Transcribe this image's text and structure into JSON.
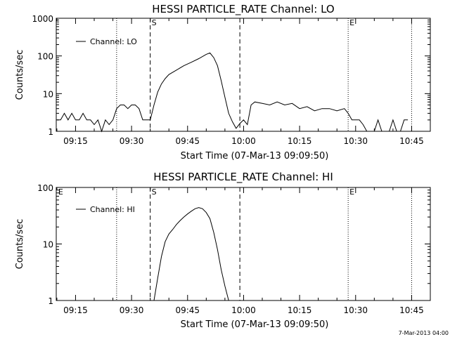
{
  "chart_data": [
    {
      "type": "line",
      "title": "HESSI PARTICLE_RATE Channel: LO",
      "xlabel": "Start Time (07-Mar-13 09:09:50)",
      "ylabel": "Counts/sec",
      "yscale": "log",
      "ylim": [
        1,
        1000
      ],
      "xlim": [
        "09:09:50",
        "10:50:00"
      ],
      "x_ticks": [
        "09:15",
        "09:30",
        "09:45",
        "10:00",
        "10:15",
        "10:30",
        "10:45"
      ],
      "y_ticks": [
        "1",
        "10",
        "100",
        "1000"
      ],
      "legend": {
        "position": "top-left",
        "entries": [
          "Channel: LO"
        ]
      },
      "markers": [
        {
          "label": "",
          "time": "09:26",
          "style": "dotted"
        },
        {
          "label": "S",
          "time": "09:35",
          "style": "dashed"
        },
        {
          "label": "",
          "time": "09:59",
          "style": "dashed"
        },
        {
          "label": "E",
          "time": "10:28",
          "style": "dotted"
        },
        {
          "label": "",
          "time": "10:45",
          "style": "dotted"
        }
      ],
      "series": [
        {
          "name": "Channel: LO",
          "x": [
            "09:10",
            "09:11",
            "09:12",
            "09:13",
            "09:14",
            "09:15",
            "09:16",
            "09:17",
            "09:18",
            "09:19",
            "09:20",
            "09:21",
            "09:22",
            "09:23",
            "09:24",
            "09:25",
            "09:26",
            "09:27",
            "09:28",
            "09:29",
            "09:30",
            "09:31",
            "09:32",
            "09:33",
            "09:34",
            "09:35",
            "09:36",
            "09:37",
            "09:38",
            "09:39",
            "09:40",
            "09:42",
            "09:44",
            "09:46",
            "09:48",
            "09:50",
            "09:51",
            "09:52",
            "09:53",
            "09:54",
            "09:55",
            "09:56",
            "09:57",
            "09:58",
            "09:59",
            "10:00",
            "10:01",
            "10:02",
            "10:03",
            "10:05",
            "10:07",
            "10:09",
            "10:11",
            "10:13",
            "10:15",
            "10:17",
            "10:19",
            "10:21",
            "10:23",
            "10:25",
            "10:27",
            "10:28",
            "10:29",
            "10:30",
            "10:31",
            "10:32",
            "10:33",
            "10:34",
            "10:35",
            "10:36",
            "10:37",
            "10:38",
            "10:39",
            "10:40",
            "10:41",
            "10:42",
            "10:43",
            "10:44"
          ],
          "values": [
            2,
            2,
            3,
            2,
            3,
            2,
            2,
            3,
            2,
            2,
            1.5,
            2,
            1,
            2,
            1.5,
            2,
            4,
            5,
            5,
            4,
            5,
            5,
            4,
            2,
            2,
            2,
            5,
            11,
            18,
            25,
            32,
            42,
            55,
            68,
            85,
            110,
            120,
            90,
            55,
            22,
            8,
            3,
            1.8,
            1.2,
            1.6,
            2,
            1.5,
            5,
            6,
            5.5,
            5,
            6,
            5,
            5.5,
            4,
            4.5,
            3.5,
            4,
            4,
            3.5,
            4,
            3,
            2,
            2,
            2,
            1.5,
            1,
            1,
            1,
            2,
            1,
            1,
            1,
            2,
            1,
            1,
            2,
            2
          ]
        }
      ]
    },
    {
      "type": "line",
      "title": "HESSI PARTICLE_RATE Channel: HI",
      "xlabel": "Start Time (07-Mar-13 09:09:50)",
      "ylabel": "Counts/sec",
      "yscale": "log",
      "ylim": [
        1,
        100
      ],
      "xlim": [
        "09:09:50",
        "10:50:00"
      ],
      "x_ticks": [
        "09:15",
        "09:30",
        "09:45",
        "10:00",
        "10:15",
        "10:30",
        "10:45"
      ],
      "y_ticks": [
        "1",
        "10",
        "100"
      ],
      "legend": {
        "position": "top-left",
        "entries": [
          "Channel: HI"
        ]
      },
      "markers": [
        {
          "label": "E",
          "time": "09:10",
          "style": "none"
        },
        {
          "label": "",
          "time": "09:26",
          "style": "dotted"
        },
        {
          "label": "S",
          "time": "09:35",
          "style": "dashed"
        },
        {
          "label": "",
          "time": "09:59",
          "style": "dashed"
        },
        {
          "label": "E",
          "time": "10:28",
          "style": "dotted"
        },
        {
          "label": "",
          "time": "10:45",
          "style": "dotted"
        }
      ],
      "series": [
        {
          "name": "Channel: HI",
          "x": [
            "09:36",
            "09:37",
            "09:38",
            "09:39",
            "09:40",
            "09:41",
            "09:42",
            "09:43",
            "09:44",
            "09:45",
            "09:46",
            "09:47",
            "09:48",
            "09:49",
            "09:50",
            "09:51",
            "09:52",
            "09:53",
            "09:54",
            "09:55",
            "09:56"
          ],
          "values": [
            1,
            2.5,
            6,
            11,
            15,
            18,
            22,
            26,
            30,
            34,
            38,
            42,
            44,
            42,
            36,
            28,
            16,
            8,
            3.5,
            1.8,
            1
          ]
        }
      ]
    }
  ],
  "footer": {
    "timestamp": "7-Mar-2013 04:00"
  }
}
